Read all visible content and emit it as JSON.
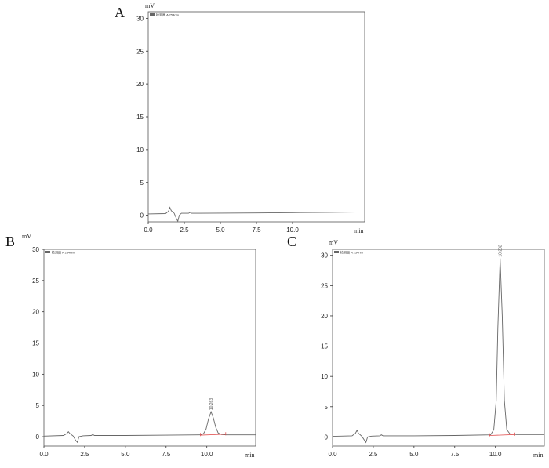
{
  "chart_data": [
    {
      "panel": "A",
      "type": "line",
      "ylabel": "mV",
      "xlabel": "min",
      "legend": "检测器 A 254nm",
      "xlim": [
        0,
        15
      ],
      "ylim": [
        -1,
        31
      ],
      "x_ticks": [
        "0.0",
        "2.5",
        "5.0",
        "7.5",
        "10.0"
      ],
      "y_ticks": [
        "0",
        "5",
        "10",
        "15",
        "20",
        "25",
        "30"
      ],
      "peak_label": "",
      "series": [
        {
          "x": [
            0,
            1.2,
            1.4,
            1.5,
            1.6,
            1.8,
            1.95,
            2.05,
            2.15,
            2.3,
            2.8,
            2.9,
            3.0,
            3.2,
            5,
            7.5,
            10,
            12.5,
            15
          ],
          "y": [
            0.2,
            0.25,
            0.6,
            1.2,
            0.7,
            0.3,
            -0.5,
            -0.9,
            0.0,
            0.3,
            0.3,
            0.45,
            0.3,
            0.3,
            0.32,
            0.35,
            0.4,
            0.45,
            0.5
          ]
        }
      ]
    },
    {
      "panel": "B",
      "type": "line",
      "ylabel": "mV",
      "xlabel": "min",
      "legend": "检测器 A 254nm",
      "xlim": [
        0,
        13
      ],
      "ylim": [
        -1.5,
        30
      ],
      "x_ticks": [
        "0.0",
        "2.5",
        "5.0",
        "7.5",
        "10.0"
      ],
      "y_ticks": [
        "0",
        "5",
        "10",
        "15",
        "20",
        "25",
        "30"
      ],
      "peak_label": "10.263",
      "peak_x": 10.26,
      "peak_y": 4.0,
      "series": [
        {
          "x": [
            0,
            1.2,
            1.4,
            1.5,
            1.6,
            1.8,
            1.95,
            2.05,
            2.15,
            2.4,
            2.9,
            3.0,
            3.1,
            5,
            7.5,
            9.6,
            9.8,
            9.95,
            10.1,
            10.26,
            10.4,
            10.55,
            10.7,
            10.9,
            11.2,
            13
          ],
          "y": [
            0.1,
            0.2,
            0.5,
            0.8,
            0.5,
            0.1,
            -0.6,
            -0.9,
            0.0,
            0.15,
            0.2,
            0.35,
            0.2,
            0.2,
            0.25,
            0.3,
            0.5,
            1.2,
            2.8,
            4.0,
            3.0,
            1.5,
            0.6,
            0.35,
            0.3,
            0.3
          ]
        }
      ]
    },
    {
      "panel": "C",
      "type": "line",
      "ylabel": "mV",
      "xlabel": "min",
      "legend": "检测器 A 254nm",
      "xlim": [
        0,
        13
      ],
      "ylim": [
        -1.5,
        31
      ],
      "x_ticks": [
        "0.0",
        "2.5",
        "5.0",
        "7.5",
        "10.0"
      ],
      "y_ticks": [
        "0",
        "5",
        "10",
        "15",
        "20",
        "25",
        "30"
      ],
      "peak_label": "10.292",
      "peak_x": 10.29,
      "peak_y": 29.5,
      "series": [
        {
          "x": [
            0,
            1.2,
            1.4,
            1.5,
            1.6,
            1.8,
            1.95,
            2.05,
            2.15,
            2.4,
            2.9,
            3.0,
            3.1,
            5,
            7.5,
            9.7,
            9.9,
            10.05,
            10.15,
            10.29,
            10.42,
            10.55,
            10.7,
            10.9,
            11.3,
            13
          ],
          "y": [
            0.1,
            0.2,
            0.6,
            1.1,
            0.6,
            0.1,
            -0.5,
            -0.9,
            0.0,
            0.15,
            0.2,
            0.35,
            0.2,
            0.2,
            0.25,
            0.35,
            1.2,
            6.0,
            18.0,
            29.5,
            20.0,
            6.0,
            1.2,
            0.5,
            0.4,
            0.4
          ]
        }
      ]
    }
  ]
}
